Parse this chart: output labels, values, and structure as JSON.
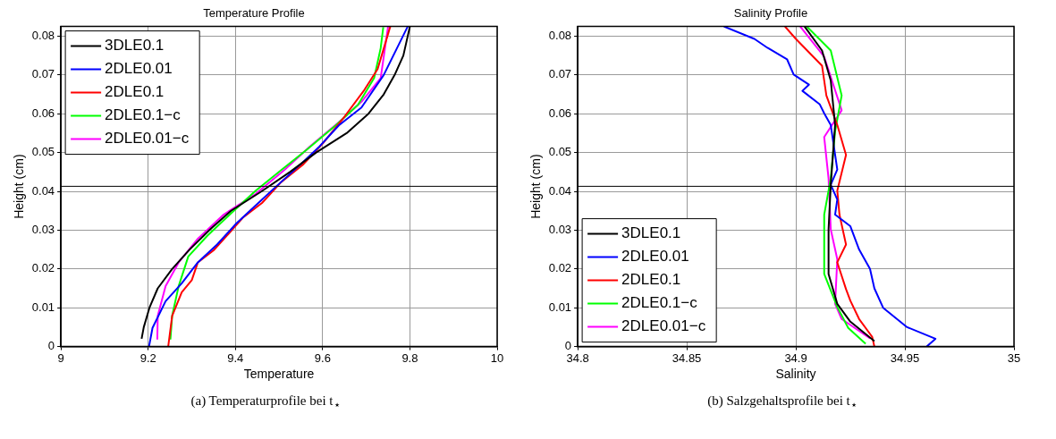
{
  "chart_data": [
    {
      "type": "line",
      "title": "Temperature Profile",
      "xlabel": "Temperature",
      "ylabel": "Height (cm)",
      "xlim": [
        9,
        10
      ],
      "xticks": [
        9,
        9.2,
        9.4,
        9.6,
        9.8,
        10
      ],
      "ylim": [
        0,
        0.0825
      ],
      "yticks": [
        0,
        0.01,
        0.02,
        0.03,
        0.04,
        0.05,
        0.06,
        0.07,
        0.08
      ],
      "grid": true,
      "legend": "top left",
      "line_style": "solid",
      "ref_lines": [
        {
          "axis": "y",
          "value": 0.0413,
          "color": "#000000"
        }
      ],
      "annotations": [
        "(a) Temperaturprofile bei t$_{⋆}$"
      ],
      "series": [
        {
          "name": "3DLE0.1",
          "color": "#000000",
          "x": [
            9.185,
            9.19,
            9.203,
            9.222,
            9.255,
            9.295,
            9.34,
            9.39,
            9.46,
            9.525,
            9.585,
            9.655,
            9.705,
            9.74,
            9.765,
            9.785,
            9.8
          ],
          "values": [
            0.002,
            0.005,
            0.01,
            0.015,
            0.02,
            0.025,
            0.03,
            0.035,
            0.04,
            0.045,
            0.05,
            0.055,
            0.06,
            0.065,
            0.07,
            0.075,
            0.0825
          ]
        },
        {
          "name": "2DLE0.01",
          "color": "#0000ff",
          "x": [
            9.202,
            9.21,
            9.24,
            9.277,
            9.314,
            9.358,
            9.402,
            9.446,
            9.49,
            9.542,
            9.593,
            9.637,
            9.689,
            9.74,
            9.795
          ],
          "values": [
            0,
            0.0048,
            0.0117,
            0.0163,
            0.0217,
            0.0263,
            0.0317,
            0.0363,
            0.0409,
            0.0462,
            0.0516,
            0.057,
            0.0616,
            0.07,
            0.0825
          ]
        },
        {
          "name": "2DLE0.1",
          "color": "#ff0000",
          "x": [
            9.246,
            9.255,
            9.277,
            9.3,
            9.314,
            9.35,
            9.387,
            9.417,
            9.461,
            9.505,
            9.556,
            9.6,
            9.645,
            9.696,
            9.726,
            9.755
          ],
          "values": [
            0,
            0.0079,
            0.014,
            0.0171,
            0.0217,
            0.0248,
            0.0294,
            0.0332,
            0.037,
            0.0424,
            0.047,
            0.0523,
            0.0585,
            0.0662,
            0.0715,
            0.0825
          ]
        },
        {
          "name": "2DLE0.1−c",
          "color": "#00ff00",
          "x": [
            9.251,
            9.255,
            9.27,
            9.292,
            9.336,
            9.387,
            9.446,
            9.505,
            9.564,
            9.63,
            9.681,
            9.718,
            9.733,
            9.739
          ],
          "values": [
            0.0018,
            0.0079,
            0.0156,
            0.0232,
            0.0286,
            0.034,
            0.0401,
            0.0455,
            0.0508,
            0.057,
            0.0623,
            0.0692,
            0.0769,
            0.0823
          ]
        },
        {
          "name": "2DLE0.01−c",
          "color": "#ff00ff",
          "x": [
            9.221,
            9.222,
            9.24,
            9.27,
            9.314,
            9.373,
            9.446,
            9.512,
            9.571,
            9.637,
            9.689,
            9.733,
            9.75
          ],
          "values": [
            0.0018,
            0.0079,
            0.0156,
            0.0217,
            0.0278,
            0.034,
            0.0393,
            0.0455,
            0.0516,
            0.0578,
            0.0631,
            0.0692,
            0.0825
          ]
        }
      ]
    },
    {
      "type": "line",
      "title": "Salinity Profile",
      "xlabel": "Salinity",
      "ylabel": "Height (cm)",
      "xlim": [
        34.8,
        35
      ],
      "xticks": [
        34.8,
        34.85,
        34.9,
        34.95,
        35
      ],
      "ylim": [
        0,
        0.0825
      ],
      "yticks": [
        0,
        0.01,
        0.02,
        0.03,
        0.04,
        0.05,
        0.06,
        0.07,
        0.08
      ],
      "grid": true,
      "legend": "bottom left",
      "line_style": "solid",
      "ref_lines": [
        {
          "axis": "y",
          "value": 0.0413,
          "color": "#000000"
        }
      ],
      "annotations": [
        "(b) Salzgehaltsprofile bei t$_{⋆}$"
      ],
      "series": [
        {
          "name": "3DLE0.1",
          "color": "#000000",
          "x": [
            34.904,
            34.912,
            34.916,
            34.918,
            34.916,
            34.915,
            34.915,
            34.919,
            34.925,
            34.936
          ],
          "values": [
            0.0825,
            0.0763,
            0.0686,
            0.0571,
            0.0417,
            0.0302,
            0.0187,
            0.011,
            0.0064,
            0.0014
          ]
        },
        {
          "name": "2DLE0.01",
          "color": "#0000ff",
          "x": [
            34.867,
            34.881,
            34.887,
            34.896,
            34.899,
            34.906,
            34.903,
            34.911,
            34.913,
            34.916,
            34.919,
            34.916,
            34.919,
            34.918,
            34.925,
            34.929,
            34.934,
            34.936,
            34.94,
            34.951,
            34.964,
            34.96
          ],
          "values": [
            0.0825,
            0.0793,
            0.077,
            0.074,
            0.0701,
            0.0675,
            0.0659,
            0.0624,
            0.0601,
            0.0571,
            0.0456,
            0.0417,
            0.0379,
            0.034,
            0.031,
            0.025,
            0.02,
            0.015,
            0.01,
            0.005,
            0.002,
            0
          ]
        },
        {
          "name": "2DLE0.1",
          "color": "#ff0000",
          "x": [
            34.895,
            34.9,
            34.912,
            34.914,
            34.919,
            34.923,
            34.919,
            34.92,
            34.923,
            34.919,
            34.923,
            34.925,
            34.929,
            34.935,
            34.936
          ],
          "values": [
            0.0825,
            0.0793,
            0.0724,
            0.0647,
            0.0571,
            0.0494,
            0.0402,
            0.034,
            0.0263,
            0.0217,
            0.0148,
            0.0118,
            0.0071,
            0.0025,
            0
          ]
        },
        {
          "name": "2DLE0.1−c",
          "color": "#00ff00",
          "x": [
            34.905,
            34.916,
            34.921,
            34.918,
            34.916,
            34.913,
            34.913,
            34.919,
            34.924,
            34.932
          ],
          "values": [
            0.0825,
            0.0763,
            0.0647,
            0.0555,
            0.0433,
            0.034,
            0.0187,
            0.0102,
            0.0048,
            0.0007
          ]
        },
        {
          "name": "2DLE0.01−c",
          "color": "#ff00ff",
          "x": [
            34.902,
            34.913,
            34.921,
            34.913,
            34.915,
            34.916,
            34.919,
            34.918,
            34.921,
            34.934
          ],
          "values": [
            0.0825,
            0.0747,
            0.0609,
            0.054,
            0.0433,
            0.0302,
            0.0225,
            0.011,
            0.0071,
            0.0021
          ]
        }
      ]
    }
  ]
}
